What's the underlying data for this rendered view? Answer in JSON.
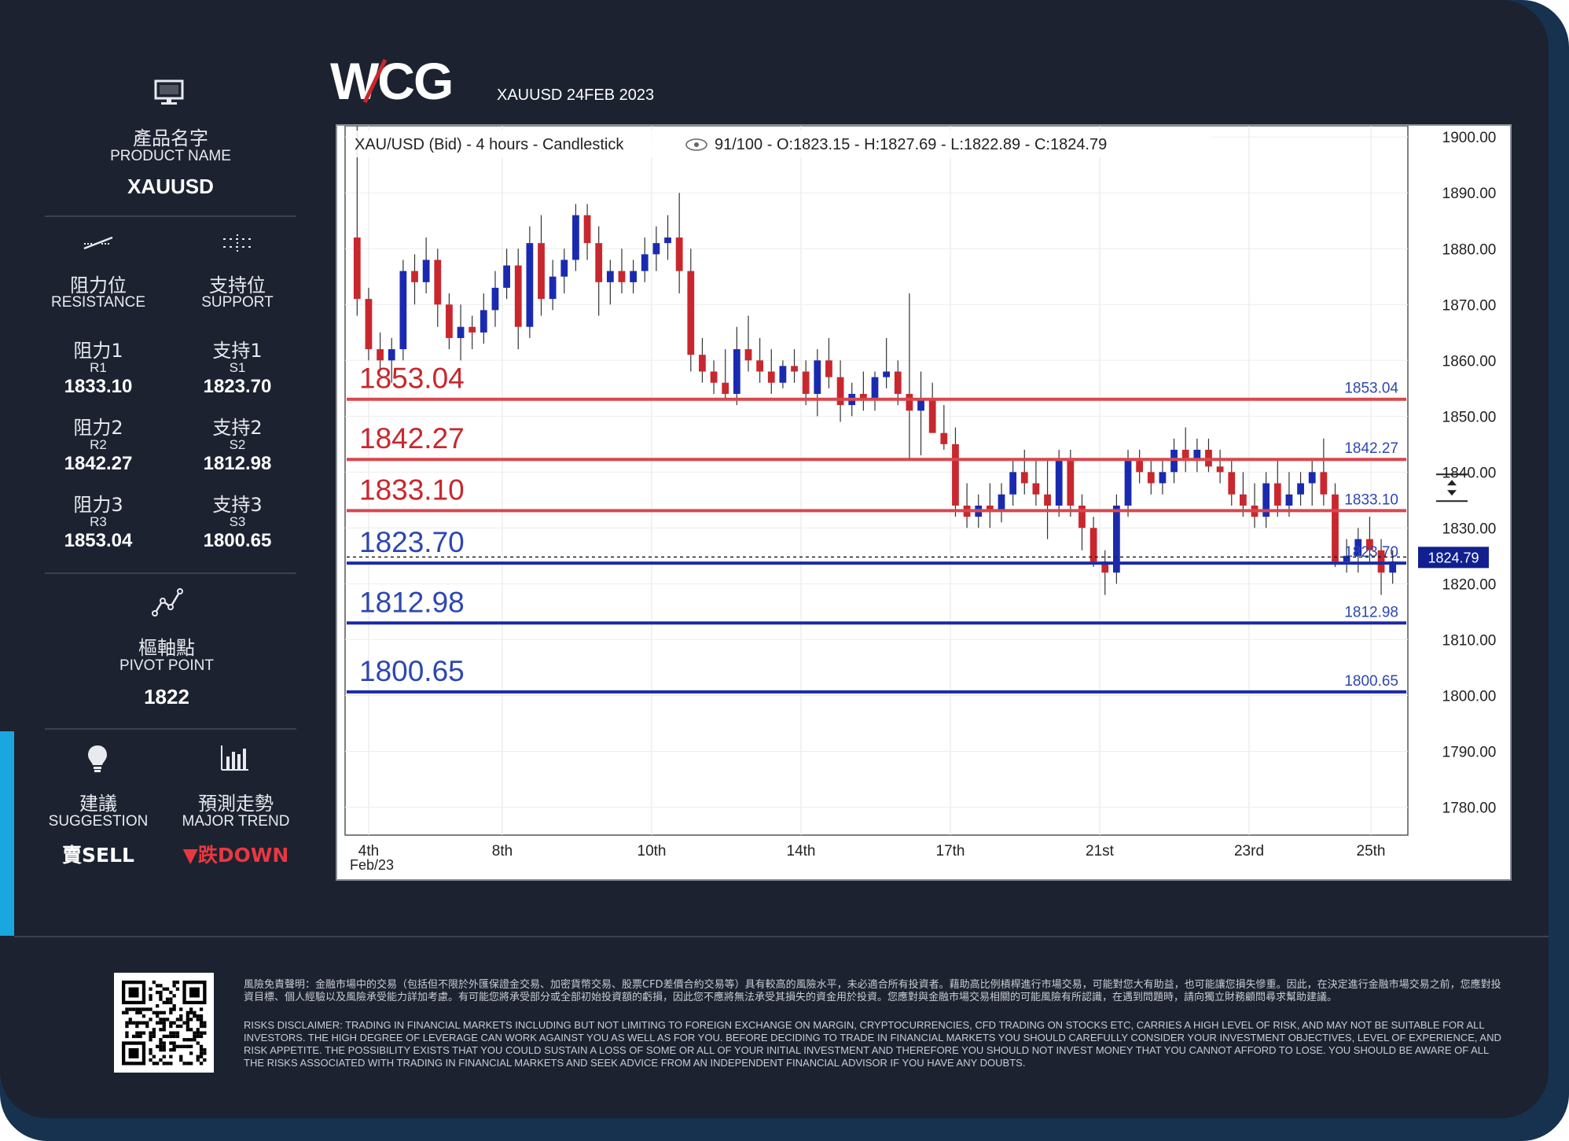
{
  "header": {
    "logo_text": "WCG",
    "subtitle": "XAUUSD 24FEB 2023"
  },
  "product": {
    "icon": "monitor-icon",
    "label_cn": "產品名字",
    "label_en": "PRODUCT NAME",
    "value": "XAUUSD"
  },
  "levels": {
    "resistance": {
      "icon": "resistance-line-icon",
      "label_cn": "阻力位",
      "label_en": "RESISTANCE"
    },
    "support": {
      "icon": "support-dots-icon",
      "label_cn": "支持位",
      "label_en": "SUPPORT"
    },
    "r": [
      {
        "cn": "阻力1",
        "en": "R1",
        "value": "1833.10"
      },
      {
        "cn": "阻力2",
        "en": "R2",
        "value": "1842.27"
      },
      {
        "cn": "阻力3",
        "en": "R3",
        "value": "1853.04"
      }
    ],
    "s": [
      {
        "cn": "支持1",
        "en": "S1",
        "value": "1823.70"
      },
      {
        "cn": "支持2",
        "en": "S2",
        "value": "1812.98"
      },
      {
        "cn": "支持3",
        "en": "S3",
        "value": "1800.65"
      }
    ]
  },
  "pivot": {
    "icon": "pivot-line-icon",
    "label_cn": "樞軸點",
    "label_en": "PIVOT POINT",
    "value": "1822"
  },
  "suggestion": {
    "icon": "lightbulb-icon",
    "label_cn": "建議",
    "label_en": "SUGGESTION",
    "value": "賣SELL"
  },
  "trend": {
    "icon": "bar-chart-icon",
    "label_cn": "預測走勢",
    "label_en": "MAJOR TREND",
    "value": "▼跌DOWN"
  },
  "disclaimer": {
    "cn": "風險免責聲明：金融市場中的交易（包括但不限於外匯保證金交易、加密貨幣交易、股票CFD差價合約交易等）具有較高的風險水平，未必適合所有投資者。藉助高比例槓桿進行市場交易，可能對您大有助益，也可能讓您損失慘重。因此，在決定進行金融市場交易之前，您應對投資目標、個人經驗以及風險承受能力詳加考慮。有可能您將承受部分或全部初始投資額的虧損，因此您不應將無法承受其損失的資金用於投資。您應對與金融市場交易相關的可能風險有所認識，在遇到問題時，請向獨立財務顧問尋求幫助建議。",
    "en": "RISKS DISCLAIMER: TRADING IN FINANCIAL MARKETS INCLUDING BUT NOT LIMITING TO FOREIGN EXCHANGE ON MARGIN, CRYPTOCURRENCIES, CFD TRADING ON STOCKS ETC, CARRIES A HIGH LEVEL OF RISK, AND MAY NOT BE SUITABLE FOR ALL INVESTORS. THE HIGH DEGREE OF LEVERAGE CAN WORK AGAINST YOU AS WELL AS FOR YOU. BEFORE DECIDING TO TRADE IN FINANCIAL MARKETS YOU SHOULD CAREFULLY CONSIDER YOUR INVESTMENT OBJECTIVES, LEVEL OF EXPERIENCE, AND RISK APPETITE. THE POSSIBILITY EXISTS THAT YOU COULD SUSTAIN A LOSS OF SOME OR ALL OF YOUR INITIAL INVESTMENT AND THEREFORE YOU SHOULD NOT INVEST MONEY THAT YOU CANNOT AFFORD TO LOSE. YOU SHOULD BE AWARE OF ALL THE RISKS ASSOCIATED WITH TRADING IN FINANCIAL MARKETS AND SEEK ADVICE FROM AN INDEPENDENT FINANCIAL ADVISOR IF YOU HAVE ANY DOUBTS."
  },
  "qr_icon": "qr-code-icon",
  "colors": {
    "background": "#1c2230",
    "accent": "#17324f",
    "cyan": "#1aa7e0",
    "up_candle": "#1a2ab0",
    "down_candle": "#c9272e",
    "resistance_line": "#d9474d",
    "support_line": "#1a2aa8",
    "trend_down": "#e8383f"
  },
  "chart_data": {
    "type": "candlestick",
    "title": "XAU/USD (Bid) - 4 hours - Candlestick",
    "title_meta": "91/100 - O:1823.15 - H:1827.69 - L:1822.89 - C:1824.79",
    "ylim": [
      1775,
      1902
    ],
    "y_ticks": [
      "1900.00",
      "1890.00",
      "1880.00",
      "1870.00",
      "1860.00",
      "1850.00",
      "1840.00",
      "1830.00",
      "1820.00",
      "1810.00",
      "1800.00",
      "1790.00",
      "1780.00"
    ],
    "x_ticks": [
      "4th",
      "8th",
      "10th",
      "14th",
      "17th",
      "21st",
      "23rd",
      "25th"
    ],
    "x_sub_label": "Feb/23",
    "current_price": "1824.79",
    "resistance_levels": [
      {
        "value": 1853.04,
        "label": "1853.04"
      },
      {
        "value": 1842.27,
        "label": "1842.27"
      },
      {
        "value": 1833.1,
        "label": "1833.10"
      }
    ],
    "support_levels": [
      {
        "value": 1823.7,
        "label": "1823.70"
      },
      {
        "value": 1812.98,
        "label": "1812.98"
      },
      {
        "value": 1800.65,
        "label": "1800.65"
      }
    ],
    "candles": [
      [
        1882,
        1902,
        1868,
        1871
      ],
      [
        1871,
        1873,
        1860,
        1862
      ],
      [
        1862,
        1865,
        1858,
        1860
      ],
      [
        1860,
        1864,
        1856,
        1862
      ],
      [
        1862,
        1878,
        1860,
        1876
      ],
      [
        1876,
        1879,
        1870,
        1874
      ],
      [
        1874,
        1882,
        1872,
        1878
      ],
      [
        1878,
        1880,
        1866,
        1870
      ],
      [
        1870,
        1872,
        1862,
        1864
      ],
      [
        1864,
        1870,
        1860,
        1866
      ],
      [
        1866,
        1868,
        1862,
        1865
      ],
      [
        1865,
        1872,
        1863,
        1869
      ],
      [
        1869,
        1876,
        1866,
        1873
      ],
      [
        1873,
        1880,
        1871,
        1877
      ],
      [
        1877,
        1880,
        1862,
        1866
      ],
      [
        1866,
        1884,
        1864,
        1881
      ],
      [
        1881,
        1886,
        1868,
        1871
      ],
      [
        1871,
        1878,
        1869,
        1875
      ],
      [
        1875,
        1880,
        1872,
        1878
      ],
      [
        1878,
        1888,
        1876,
        1886
      ],
      [
        1886,
        1888,
        1878,
        1881
      ],
      [
        1881,
        1884,
        1868,
        1874
      ],
      [
        1874,
        1878,
        1870,
        1876
      ],
      [
        1876,
        1880,
        1872,
        1874
      ],
      [
        1874,
        1878,
        1872,
        1876
      ],
      [
        1876,
        1882,
        1874,
        1879
      ],
      [
        1879,
        1884,
        1876,
        1881
      ],
      [
        1881,
        1886,
        1878,
        1882
      ],
      [
        1882,
        1890,
        1872,
        1876
      ],
      [
        1876,
        1880,
        1858,
        1861
      ],
      [
        1861,
        1864,
        1856,
        1858
      ],
      [
        1858,
        1860,
        1854,
        1856
      ],
      [
        1856,
        1862,
        1853,
        1854
      ],
      [
        1854,
        1866,
        1852,
        1862
      ],
      [
        1862,
        1868,
        1858,
        1860
      ],
      [
        1860,
        1864,
        1856,
        1858
      ],
      [
        1858,
        1862,
        1854,
        1856
      ],
      [
        1856,
        1860,
        1855,
        1859
      ],
      [
        1859,
        1862,
        1856,
        1858
      ],
      [
        1858,
        1860,
        1852,
        1854
      ],
      [
        1854,
        1862,
        1850,
        1860
      ],
      [
        1860,
        1864,
        1855,
        1857
      ],
      [
        1857,
        1860,
        1849,
        1852
      ],
      [
        1852,
        1856,
        1850,
        1854
      ],
      [
        1854,
        1858,
        1851,
        1853
      ],
      [
        1853,
        1858,
        1851,
        1857
      ],
      [
        1857,
        1864,
        1855,
        1858
      ],
      [
        1858,
        1860,
        1852,
        1854
      ],
      [
        1854,
        1872,
        1842,
        1851
      ],
      [
        1851,
        1858,
        1843,
        1853
      ],
      [
        1853,
        1856,
        1848,
        1847
      ],
      [
        1847,
        1852,
        1844,
        1845
      ],
      [
        1845,
        1848,
        1832,
        1834
      ],
      [
        1834,
        1838,
        1830,
        1832
      ],
      [
        1832,
        1836,
        1830,
        1834
      ],
      [
        1834,
        1838,
        1830,
        1833
      ],
      [
        1833,
        1838,
        1831,
        1836
      ],
      [
        1836,
        1842,
        1834,
        1840
      ],
      [
        1840,
        1844,
        1836,
        1838
      ],
      [
        1838,
        1842,
        1834,
        1836
      ],
      [
        1836,
        1842,
        1828,
        1834
      ],
      [
        1834,
        1844,
        1832,
        1842
      ],
      [
        1842,
        1844,
        1832,
        1834
      ],
      [
        1834,
        1836,
        1826,
        1830
      ],
      [
        1830,
        1832,
        1823,
        1824
      ],
      [
        1824,
        1826,
        1818,
        1822
      ],
      [
        1822,
        1836,
        1820,
        1834
      ],
      [
        1834,
        1844,
        1832,
        1842
      ],
      [
        1842,
        1844,
        1838,
        1840
      ],
      [
        1840,
        1842,
        1836,
        1838
      ],
      [
        1838,
        1842,
        1836,
        1840
      ],
      [
        1840,
        1846,
        1838,
        1844
      ],
      [
        1844,
        1848,
        1840,
        1842
      ],
      [
        1842,
        1846,
        1840,
        1844
      ],
      [
        1844,
        1846,
        1840,
        1841
      ],
      [
        1841,
        1844,
        1838,
        1840
      ],
      [
        1840,
        1842,
        1834,
        1836
      ],
      [
        1836,
        1840,
        1832,
        1834
      ],
      [
        1834,
        1838,
        1830,
        1832
      ],
      [
        1832,
        1840,
        1830,
        1838
      ],
      [
        1838,
        1842,
        1832,
        1834
      ],
      [
        1834,
        1840,
        1832,
        1836
      ],
      [
        1836,
        1840,
        1834,
        1838
      ],
      [
        1838,
        1842,
        1834,
        1840
      ],
      [
        1840,
        1846,
        1834,
        1836
      ],
      [
        1836,
        1838,
        1823,
        1824
      ],
      [
        1824,
        1828,
        1822,
        1825
      ],
      [
        1825,
        1830,
        1822,
        1828
      ],
      [
        1828,
        1832,
        1824,
        1826
      ],
      [
        1826,
        1828,
        1818,
        1822
      ],
      [
        1822,
        1826,
        1820,
        1824
      ]
    ]
  }
}
